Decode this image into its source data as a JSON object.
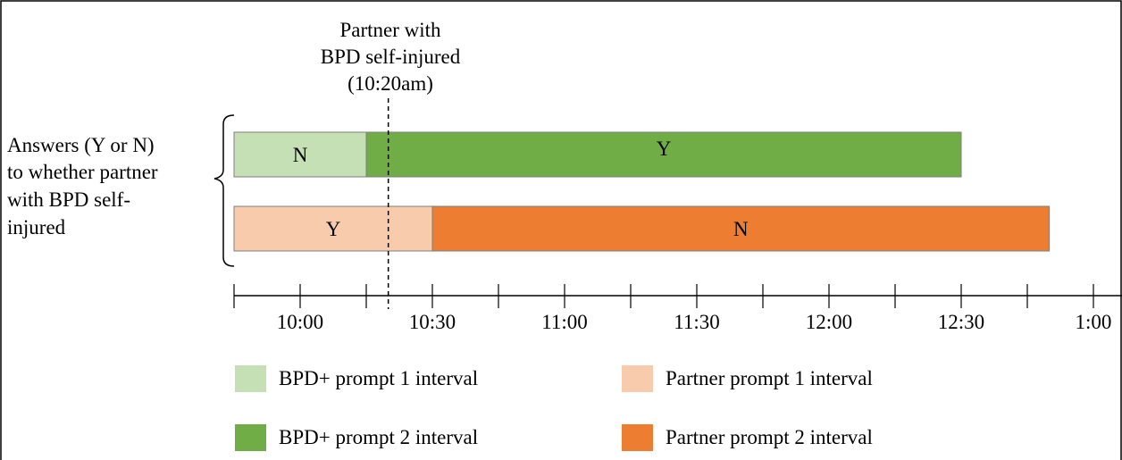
{
  "annotation": {
    "lines": [
      "Partner with",
      "BPD self-injured",
      "(10:20am)"
    ]
  },
  "row_label": {
    "lines": [
      "Answers (Y or N)",
      "to whether partner",
      "with BPD self-",
      "injured"
    ]
  },
  "chart_data": {
    "type": "timeline",
    "axis": {
      "start_minutes_after_9_45": 0,
      "tick_labels": [
        "10:00",
        "10:30",
        "11:00",
        "11:30",
        "12:00",
        "12:30",
        "1:00"
      ]
    },
    "event": {
      "label": "Partner with BPD self-injured (10:20am)",
      "time": "10:20"
    },
    "rows": [
      {
        "segments": [
          {
            "start": "9:45",
            "end": "10:15",
            "answer": "N",
            "legend": "BPD+ prompt 1 interval",
            "color": "#c5e0b4"
          },
          {
            "start": "10:15",
            "end": "12:30",
            "answer": "Y",
            "legend": "BPD+ prompt 2 interval",
            "color": "#70ad47"
          }
        ]
      },
      {
        "segments": [
          {
            "start": "9:45",
            "end": "10:30",
            "answer": "Y",
            "legend": "Partner prompt 1 interval",
            "color": "#f8cbad"
          },
          {
            "start": "10:30",
            "end": "12:50",
            "answer": "N",
            "legend": "Partner prompt 2 interval",
            "color": "#ed7d31"
          }
        ]
      }
    ]
  },
  "legend": [
    {
      "label": "BPD+ prompt 1 interval",
      "color": "#c5e0b4"
    },
    {
      "label": "Partner prompt 1 interval",
      "color": "#f8cbad"
    },
    {
      "label": "BPD+ prompt 2 interval",
      "color": "#70ad47"
    },
    {
      "label": "Partner prompt 2 interval",
      "color": "#ed7d31"
    }
  ]
}
